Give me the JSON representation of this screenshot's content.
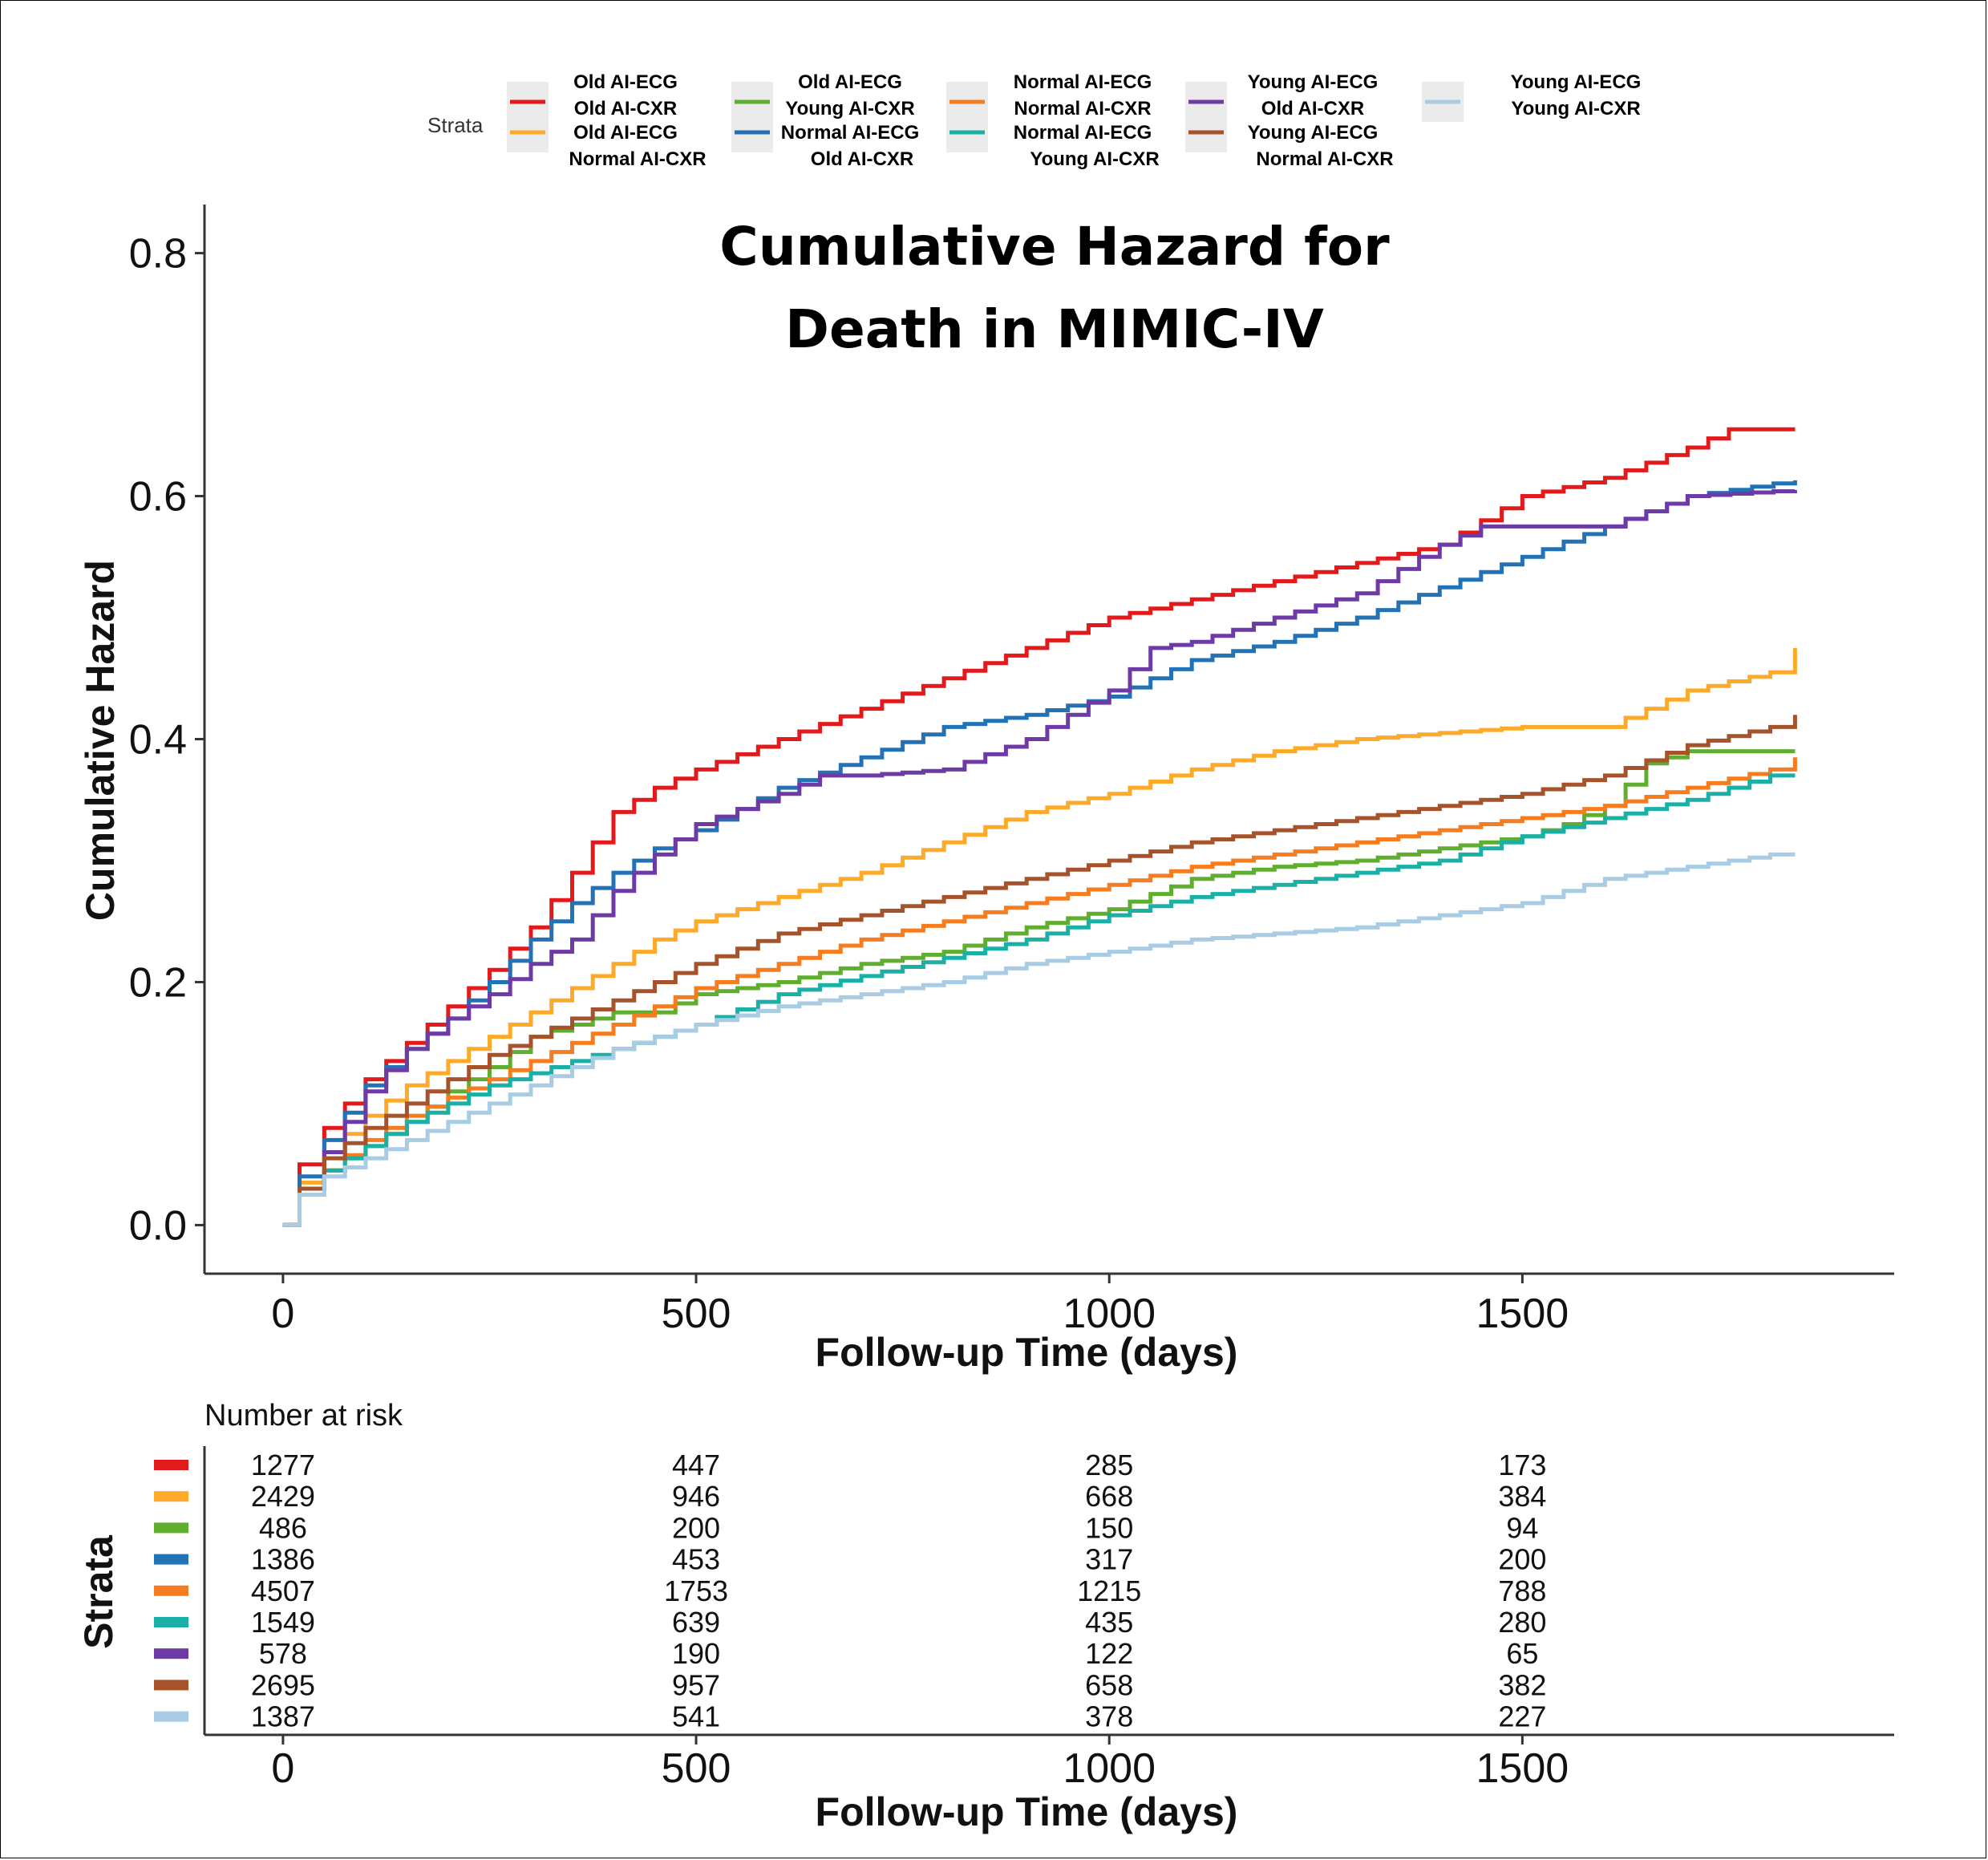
{
  "chart_data": {
    "type": "line",
    "title_lines": [
      "Cumulative Hazard for",
      "Death in MIMIC-IV"
    ],
    "xlabel": "Follow-up Time (days)",
    "ylabel": "Cumulative Hazard",
    "xlim": [
      -95,
      1950
    ],
    "ylim": [
      -0.04,
      0.84
    ],
    "xticks": [
      0,
      500,
      1000,
      1500
    ],
    "xtick_labels": [
      "0",
      "500",
      "1000",
      "1500"
    ],
    "yticks": [
      0.0,
      0.2,
      0.4,
      0.6,
      0.8
    ],
    "ytick_labels": [
      "0.0",
      "0.2",
      "0.4",
      "0.6",
      "0.8"
    ],
    "legend": {
      "title": "Strata",
      "placement": "top"
    },
    "series": [
      {
        "name_line1": "Old AI-ECG",
        "name_line2": "Old AI-CXR",
        "color": "#e31a1c",
        "points": [
          [
            0,
            0
          ],
          [
            20,
            0.05
          ],
          [
            50,
            0.08
          ],
          [
            100,
            0.12
          ],
          [
            150,
            0.15
          ],
          [
            200,
            0.18
          ],
          [
            250,
            0.21
          ],
          [
            300,
            0.245
          ],
          [
            350,
            0.29
          ],
          [
            400,
            0.34
          ],
          [
            450,
            0.36
          ],
          [
            500,
            0.375
          ],
          [
            600,
            0.4
          ],
          [
            700,
            0.425
          ],
          [
            800,
            0.45
          ],
          [
            900,
            0.475
          ],
          [
            1000,
            0.5
          ],
          [
            1100,
            0.515
          ],
          [
            1200,
            0.53
          ],
          [
            1300,
            0.545
          ],
          [
            1400,
            0.56
          ],
          [
            1500,
            0.6
          ],
          [
            1600,
            0.615
          ],
          [
            1700,
            0.64
          ],
          [
            1750,
            0.655
          ],
          [
            1830,
            0.655
          ]
        ]
      },
      {
        "name_line1": "Old AI-ECG",
        "name_line2": "Normal AI-CXR",
        "color": "#fdaa2a",
        "points": [
          [
            0,
            0
          ],
          [
            20,
            0.035
          ],
          [
            50,
            0.06
          ],
          [
            100,
            0.09
          ],
          [
            150,
            0.115
          ],
          [
            200,
            0.135
          ],
          [
            250,
            0.155
          ],
          [
            300,
            0.175
          ],
          [
            350,
            0.195
          ],
          [
            400,
            0.215
          ],
          [
            450,
            0.235
          ],
          [
            500,
            0.25
          ],
          [
            600,
            0.27
          ],
          [
            700,
            0.29
          ],
          [
            800,
            0.315
          ],
          [
            900,
            0.34
          ],
          [
            1000,
            0.355
          ],
          [
            1100,
            0.375
          ],
          [
            1200,
            0.39
          ],
          [
            1300,
            0.4
          ],
          [
            1400,
            0.405
          ],
          [
            1500,
            0.41
          ],
          [
            1600,
            0.41
          ],
          [
            1700,
            0.44
          ],
          [
            1800,
            0.455
          ],
          [
            1830,
            0.475
          ]
        ]
      },
      {
        "name_line1": "Old AI-ECG",
        "name_line2": "Young AI-CXR",
        "color": "#5fae30",
        "points": [
          [
            0,
            0
          ],
          [
            20,
            0.03
          ],
          [
            50,
            0.045
          ],
          [
            100,
            0.065
          ],
          [
            150,
            0.085
          ],
          [
            200,
            0.11
          ],
          [
            250,
            0.13
          ],
          [
            300,
            0.155
          ],
          [
            350,
            0.165
          ],
          [
            400,
            0.175
          ],
          [
            450,
            0.175
          ],
          [
            500,
            0.19
          ],
          [
            600,
            0.2
          ],
          [
            700,
            0.215
          ],
          [
            800,
            0.225
          ],
          [
            900,
            0.245
          ],
          [
            1000,
            0.26
          ],
          [
            1100,
            0.285
          ],
          [
            1200,
            0.295
          ],
          [
            1300,
            0.3
          ],
          [
            1400,
            0.31
          ],
          [
            1500,
            0.32
          ],
          [
            1550,
            0.33
          ],
          [
            1600,
            0.345
          ],
          [
            1650,
            0.38
          ],
          [
            1700,
            0.39
          ],
          [
            1830,
            0.39
          ]
        ]
      },
      {
        "name_line1": "Normal AI-ECG",
        "name_line2": "Old AI-CXR",
        "color": "#2472b6",
        "points": [
          [
            0,
            0
          ],
          [
            20,
            0.04
          ],
          [
            50,
            0.07
          ],
          [
            100,
            0.115
          ],
          [
            150,
            0.145
          ],
          [
            200,
            0.17
          ],
          [
            250,
            0.2
          ],
          [
            300,
            0.235
          ],
          [
            350,
            0.265
          ],
          [
            400,
            0.29
          ],
          [
            450,
            0.31
          ],
          [
            500,
            0.325
          ],
          [
            600,
            0.36
          ],
          [
            700,
            0.385
          ],
          [
            800,
            0.41
          ],
          [
            900,
            0.42
          ],
          [
            1000,
            0.435
          ],
          [
            1100,
            0.465
          ],
          [
            1200,
            0.48
          ],
          [
            1300,
            0.5
          ],
          [
            1400,
            0.525
          ],
          [
            1500,
            0.55
          ],
          [
            1600,
            0.575
          ],
          [
            1700,
            0.6
          ],
          [
            1830,
            0.613
          ]
        ]
      },
      {
        "name_line1": "Normal AI-ECG",
        "name_line2": "Normal AI-CXR",
        "color": "#f57c1f",
        "points": [
          [
            0,
            0
          ],
          [
            20,
            0.03
          ],
          [
            50,
            0.045
          ],
          [
            100,
            0.07
          ],
          [
            150,
            0.09
          ],
          [
            200,
            0.105
          ],
          [
            250,
            0.12
          ],
          [
            300,
            0.135
          ],
          [
            350,
            0.15
          ],
          [
            400,
            0.165
          ],
          [
            450,
            0.18
          ],
          [
            500,
            0.195
          ],
          [
            600,
            0.215
          ],
          [
            700,
            0.235
          ],
          [
            800,
            0.25
          ],
          [
            900,
            0.265
          ],
          [
            1000,
            0.28
          ],
          [
            1100,
            0.295
          ],
          [
            1200,
            0.305
          ],
          [
            1300,
            0.315
          ],
          [
            1400,
            0.325
          ],
          [
            1500,
            0.335
          ],
          [
            1600,
            0.345
          ],
          [
            1700,
            0.36
          ],
          [
            1800,
            0.375
          ],
          [
            1830,
            0.385
          ]
        ]
      },
      {
        "name_line1": "Normal AI-ECG",
        "name_line2": "Young AI-CXR",
        "color": "#1bb0a6",
        "points": [
          [
            0,
            0
          ],
          [
            20,
            0.03
          ],
          [
            50,
            0.045
          ],
          [
            100,
            0.065
          ],
          [
            150,
            0.085
          ],
          [
            200,
            0.1
          ],
          [
            250,
            0.115
          ],
          [
            300,
            0.125
          ],
          [
            350,
            0.135
          ],
          [
            400,
            0.145
          ],
          [
            450,
            0.155
          ],
          [
            500,
            0.165
          ],
          [
            600,
            0.19
          ],
          [
            700,
            0.205
          ],
          [
            800,
            0.22
          ],
          [
            900,
            0.235
          ],
          [
            1000,
            0.255
          ],
          [
            1100,
            0.27
          ],
          [
            1200,
            0.28
          ],
          [
            1300,
            0.29
          ],
          [
            1400,
            0.3
          ],
          [
            1500,
            0.32
          ],
          [
            1600,
            0.335
          ],
          [
            1700,
            0.35
          ],
          [
            1800,
            0.37
          ],
          [
            1830,
            0.37
          ]
        ]
      },
      {
        "name_line1": "Young AI-ECG",
        "name_line2": "Old AI-CXR",
        "color": "#6e3aa6",
        "points": [
          [
            0,
            0
          ],
          [
            20,
            0.03
          ],
          [
            50,
            0.06
          ],
          [
            100,
            0.11
          ],
          [
            150,
            0.145
          ],
          [
            200,
            0.17
          ],
          [
            250,
            0.19
          ],
          [
            300,
            0.215
          ],
          [
            350,
            0.235
          ],
          [
            400,
            0.275
          ],
          [
            450,
            0.305
          ],
          [
            500,
            0.33
          ],
          [
            600,
            0.355
          ],
          [
            650,
            0.37
          ],
          [
            700,
            0.37
          ],
          [
            800,
            0.375
          ],
          [
            900,
            0.4
          ],
          [
            950,
            0.42
          ],
          [
            1000,
            0.44
          ],
          [
            1050,
            0.475
          ],
          [
            1100,
            0.48
          ],
          [
            1200,
            0.5
          ],
          [
            1300,
            0.52
          ],
          [
            1350,
            0.54
          ],
          [
            1400,
            0.56
          ],
          [
            1450,
            0.575
          ],
          [
            1500,
            0.575
          ],
          [
            1600,
            0.575
          ],
          [
            1700,
            0.6
          ],
          [
            1830,
            0.605
          ]
        ]
      },
      {
        "name_line1": "Young AI-ECG",
        "name_line2": "Normal AI-CXR",
        "color": "#a6522a",
        "points": [
          [
            0,
            0
          ],
          [
            20,
            0.03
          ],
          [
            50,
            0.055
          ],
          [
            100,
            0.08
          ],
          [
            150,
            0.1
          ],
          [
            200,
            0.12
          ],
          [
            250,
            0.14
          ],
          [
            300,
            0.155
          ],
          [
            350,
            0.17
          ],
          [
            400,
            0.185
          ],
          [
            450,
            0.2
          ],
          [
            500,
            0.215
          ],
          [
            600,
            0.24
          ],
          [
            700,
            0.255
          ],
          [
            800,
            0.27
          ],
          [
            900,
            0.285
          ],
          [
            1000,
            0.3
          ],
          [
            1100,
            0.315
          ],
          [
            1200,
            0.325
          ],
          [
            1300,
            0.335
          ],
          [
            1400,
            0.345
          ],
          [
            1500,
            0.355
          ],
          [
            1600,
            0.37
          ],
          [
            1700,
            0.395
          ],
          [
            1800,
            0.41
          ],
          [
            1830,
            0.42
          ]
        ]
      },
      {
        "name_line1": "Young AI-ECG",
        "name_line2": "Young AI-CXR",
        "color": "#a7cce3",
        "points": [
          [
            0,
            0
          ],
          [
            20,
            0.025
          ],
          [
            50,
            0.04
          ],
          [
            100,
            0.055
          ],
          [
            150,
            0.07
          ],
          [
            200,
            0.085
          ],
          [
            250,
            0.1
          ],
          [
            300,
            0.115
          ],
          [
            350,
            0.13
          ],
          [
            400,
            0.145
          ],
          [
            450,
            0.155
          ],
          [
            500,
            0.165
          ],
          [
            600,
            0.18
          ],
          [
            700,
            0.19
          ],
          [
            800,
            0.2
          ],
          [
            900,
            0.215
          ],
          [
            1000,
            0.225
          ],
          [
            1100,
            0.235
          ],
          [
            1200,
            0.24
          ],
          [
            1300,
            0.245
          ],
          [
            1400,
            0.255
          ],
          [
            1500,
            0.265
          ],
          [
            1600,
            0.285
          ],
          [
            1700,
            0.295
          ],
          [
            1800,
            0.305
          ],
          [
            1830,
            0.305
          ]
        ]
      }
    ],
    "risk_table": {
      "title": "Number at risk",
      "strata_label": "Strata",
      "times": [
        0,
        500,
        1000,
        1500
      ],
      "rows": [
        [
          "1277",
          "447",
          "285",
          "173"
        ],
        [
          "2429",
          "946",
          "668",
          "384"
        ],
        [
          "486",
          "200",
          "150",
          "94"
        ],
        [
          "1386",
          "453",
          "317",
          "200"
        ],
        [
          "4507",
          "1753",
          "1215",
          "788"
        ],
        [
          "1549",
          "639",
          "435",
          "280"
        ],
        [
          "578",
          "190",
          "122",
          "65"
        ],
        [
          "2695",
          "957",
          "658",
          "382"
        ],
        [
          "1387",
          "541",
          "378",
          "227"
        ]
      ],
      "xlabel": "Follow-up Time (days)",
      "xtick_labels": [
        "0",
        "500",
        "1000",
        "1500"
      ]
    }
  }
}
